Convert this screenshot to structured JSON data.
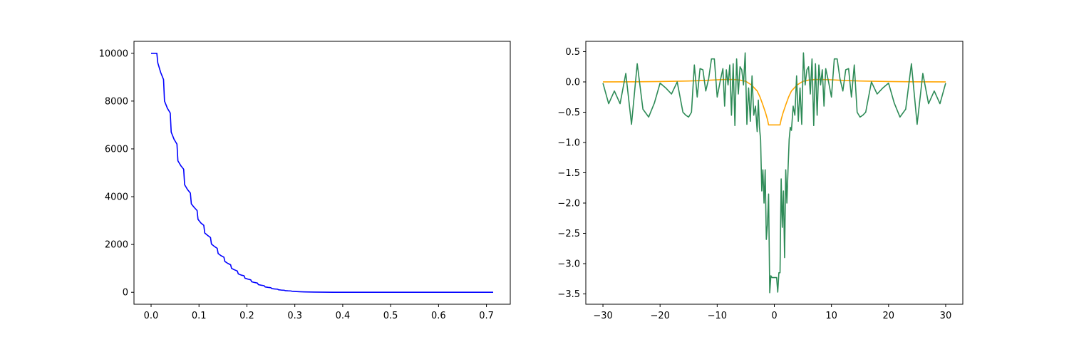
{
  "chart_data": [
    {
      "type": "line",
      "xlim": [
        -0.0357,
        0.7497
      ],
      "ylim": [
        -500,
        10500
      ],
      "xticks": [
        0.0,
        0.1,
        0.2,
        0.3,
        0.4,
        0.5,
        0.6,
        0.7
      ],
      "xtick_labels": [
        "0.0",
        "0.1",
        "0.2",
        "0.3",
        "0.4",
        "0.5",
        "0.6",
        "0.7"
      ],
      "yticks": [
        0,
        2000,
        4000,
        6000,
        8000,
        10000
      ],
      "ytick_labels": [
        "0",
        "2000",
        "4000",
        "6000",
        "8000",
        "10000"
      ],
      "grid": false,
      "series": [
        {
          "color": "#0000ff",
          "x": [
            0.0,
            0.012,
            0.014,
            0.02,
            0.026,
            0.028,
            0.034,
            0.04,
            0.042,
            0.048,
            0.054,
            0.056,
            0.062,
            0.068,
            0.07,
            0.076,
            0.082,
            0.084,
            0.09,
            0.096,
            0.098,
            0.104,
            0.11,
            0.112,
            0.118,
            0.124,
            0.126,
            0.132,
            0.138,
            0.14,
            0.146,
            0.152,
            0.154,
            0.16,
            0.166,
            0.168,
            0.174,
            0.18,
            0.182,
            0.188,
            0.194,
            0.196,
            0.202,
            0.208,
            0.21,
            0.216,
            0.222,
            0.224,
            0.23,
            0.236,
            0.238,
            0.244,
            0.25,
            0.252,
            0.258,
            0.264,
            0.266,
            0.272,
            0.278,
            0.28,
            0.286,
            0.292,
            0.294,
            0.3,
            0.31,
            0.32,
            0.33,
            0.34,
            0.36,
            0.38,
            0.4,
            0.43,
            0.46,
            0.5,
            0.55,
            0.6,
            0.65,
            0.714
          ],
          "y": [
            10000,
            10000,
            9600,
            9200,
            8900,
            8000,
            7700,
            7500,
            6700,
            6400,
            6200,
            5500,
            5300,
            5150,
            4500,
            4300,
            4150,
            3700,
            3550,
            3420,
            3050,
            2900,
            2800,
            2480,
            2380,
            2290,
            2020,
            1920,
            1840,
            1620,
            1530,
            1470,
            1290,
            1210,
            1150,
            1000,
            940,
            890,
            770,
            720,
            690,
            590,
            550,
            520,
            440,
            410,
            385,
            320,
            295,
            275,
            225,
            205,
            190,
            155,
            140,
            130,
            105,
            92,
            85,
            68,
            60,
            55,
            43,
            36,
            25,
            17,
            12,
            8,
            4,
            2,
            1,
            0.5,
            0.2,
            0.1,
            0,
            0,
            0,
            0
          ]
        }
      ]
    },
    {
      "type": "line",
      "xlim": [
        -33,
        33
      ],
      "ylim": [
        -3.67,
        0.67
      ],
      "xticks": [
        -30,
        -20,
        -10,
        0,
        10,
        20,
        30
      ],
      "xtick_labels": [
        "−30",
        "−20",
        "−10",
        "0",
        "10",
        "20",
        "30"
      ],
      "yticks": [
        0.5,
        0.0,
        -0.5,
        -1.0,
        -1.5,
        -2.0,
        -2.5,
        -3.0,
        -3.5
      ],
      "ytick_labels": [
        "0.5",
        "0.0",
        "−0.5",
        "−1.0",
        "−1.5",
        "−2.0",
        "−2.5",
        "−3.0",
        "−3.5"
      ],
      "grid": false,
      "series": [
        {
          "color": "#ffa500",
          "x": [
            -30,
            -25,
            -20,
            -15,
            -12,
            -10,
            -8,
            -7,
            -6,
            -5,
            -4,
            -3,
            -2.5,
            -2,
            -1.5,
            -1.2,
            -1.0,
            -0.5,
            0,
            0.5,
            1.0,
            1.2,
            1.5,
            2,
            2.5,
            3,
            4,
            5,
            6,
            7,
            8,
            10,
            12,
            15,
            20,
            25,
            30
          ],
          "y": [
            0,
            0.002,
            0.006,
            0.015,
            0.025,
            0.035,
            0.04,
            0.038,
            0.03,
            0.01,
            -0.05,
            -0.15,
            -0.25,
            -0.38,
            -0.52,
            -0.62,
            -0.71,
            -0.71,
            -0.71,
            -0.71,
            -0.71,
            -0.62,
            -0.52,
            -0.38,
            -0.25,
            -0.15,
            -0.05,
            0.01,
            0.03,
            0.038,
            0.04,
            0.035,
            0.025,
            0.015,
            0.006,
            0.002,
            0
          ]
        },
        {
          "color": "#2e8b57",
          "x": [
            -30,
            -29,
            -28,
            -27,
            -26,
            -25,
            -24,
            -23,
            -22,
            -21,
            -20,
            -19,
            -18,
            -17,
            -16,
            -15.5,
            -15,
            -14.5,
            -14,
            -13.5,
            -13,
            -12.5,
            -12,
            -11.5,
            -11,
            -10.5,
            -10,
            -9.5,
            -9,
            -8.7,
            -8.4,
            -8.1,
            -7.8,
            -7.5,
            -7.2,
            -6.9,
            -6.6,
            -6.3,
            -6.0,
            -5.7,
            -5.4,
            -5.1,
            -4.8,
            -4.5,
            -4.2,
            -3.9,
            -3.6,
            -3.3,
            -3.0,
            -2.8,
            -2.6,
            -2.4,
            -2.2,
            -2.0,
            -1.8,
            -1.6,
            -1.4,
            -1.2,
            -1.0,
            -0.8,
            -0.6,
            -0.4,
            -0.2,
            0.2,
            0.4,
            0.6,
            0.8,
            1.0,
            1.2,
            1.4,
            1.6,
            1.8,
            2.0,
            2.2,
            2.4,
            2.6,
            2.8,
            3.0,
            3.3,
            3.6,
            3.9,
            4.2,
            4.5,
            4.8,
            5.1,
            5.4,
            5.7,
            6.0,
            6.3,
            6.6,
            6.9,
            7.2,
            7.5,
            7.8,
            8.1,
            8.4,
            8.7,
            9,
            9.5,
            10,
            10.5,
            11,
            11.5,
            12,
            12.5,
            13,
            13.5,
            14,
            14.5,
            15,
            15.5,
            16,
            17,
            18,
            19,
            20,
            21,
            22,
            23,
            24,
            25,
            26,
            27,
            28,
            29,
            30
          ],
          "y": [
            -0.02,
            -0.36,
            -0.15,
            -0.36,
            0.14,
            -0.7,
            0.3,
            -0.45,
            -0.58,
            -0.35,
            -0.02,
            -0.1,
            -0.2,
            0.0,
            -0.5,
            -0.55,
            -0.58,
            -0.5,
            0.28,
            -0.25,
            0.22,
            0.2,
            -0.15,
            0.05,
            0.38,
            0.38,
            -0.25,
            0.0,
            0.22,
            -0.4,
            0.2,
            -0.05,
            0.28,
            -0.55,
            0.3,
            -0.72,
            0.38,
            -0.2,
            0.25,
            0.2,
            -0.05,
            0.48,
            -0.7,
            -0.1,
            -0.65,
            0.1,
            -0.55,
            -0.4,
            -0.82,
            -0.3,
            -0.75,
            -0.95,
            -1.8,
            -1.45,
            -2.0,
            -1.45,
            -2.6,
            -2.35,
            -1.85,
            -3.48,
            -3.2,
            -3.23,
            -3.23,
            -3.23,
            -3.23,
            -3.47,
            -3.15,
            -3.15,
            -1.6,
            -2.4,
            -1.8,
            -2.9,
            -1.45,
            -2.0,
            -1.45,
            -0.95,
            -0.75,
            -0.8,
            -0.4,
            -0.55,
            0.1,
            -0.65,
            -0.1,
            -0.7,
            0.48,
            -0.05,
            0.2,
            0.25,
            -0.2,
            0.38,
            -0.72,
            0.3,
            -0.55,
            0.28,
            -0.05,
            0.2,
            -0.4,
            0.22,
            0.0,
            -0.25,
            0.38,
            0.38,
            0.05,
            -0.15,
            0.2,
            0.22,
            -0.25,
            0.28,
            -0.5,
            -0.58,
            -0.55,
            -0.5,
            0.0,
            -0.2,
            -0.1,
            -0.02,
            -0.35,
            -0.58,
            -0.45,
            0.3,
            -0.7,
            0.14,
            -0.36,
            -0.15,
            -0.36,
            -0.02
          ]
        }
      ]
    }
  ]
}
